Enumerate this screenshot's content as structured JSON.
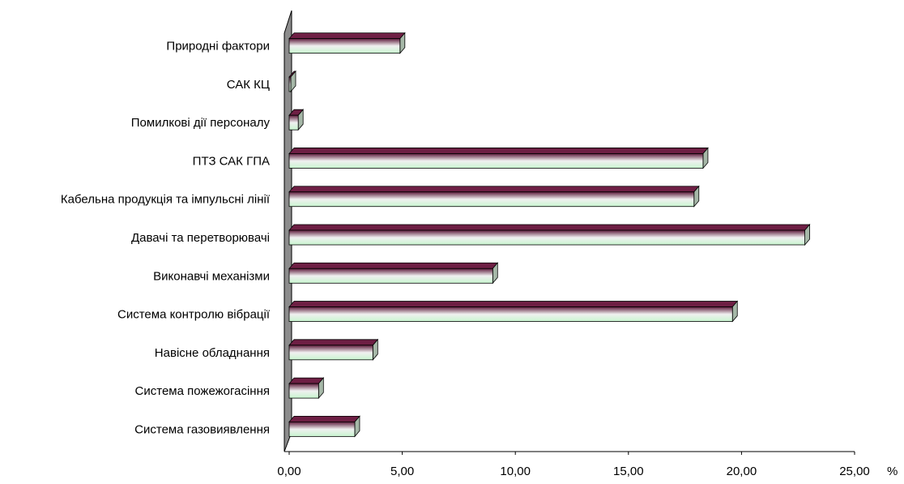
{
  "chart_data": {
    "type": "bar",
    "orientation": "horizontal",
    "categories": [
      "Система газовиявлення",
      "Система пожежогасіння",
      "Навісне обладнання",
      "Система контролю вібрації",
      "Виконавчі механізми",
      "Давачі та перетворювачі",
      "Кабельна продукція та імпульсні лінії",
      "ПТЗ САК ГПА",
      "Помилкові дії персоналу",
      "САК КЦ",
      "Природні фактори"
    ],
    "values": [
      2.9,
      1.3,
      3.7,
      19.6,
      9.0,
      22.8,
      17.9,
      18.3,
      0.4,
      0.0,
      4.9
    ],
    "x_unit": "%",
    "xlim": [
      0,
      25
    ],
    "x_ticks": [
      "0,00",
      "5,00",
      "10,00",
      "15,00",
      "20,00",
      "25,00"
    ],
    "grid": false,
    "colors": {
      "bar_top": "#6e1f44",
      "bar_front_top": "#5c1a3a",
      "bar_front_mid": "#f0f0f0",
      "bar_front_bottom": "#c8f5cf",
      "bar_end": "#a6b8a8",
      "axis_wall": "#8c8c8c",
      "edge": "#000000"
    }
  }
}
